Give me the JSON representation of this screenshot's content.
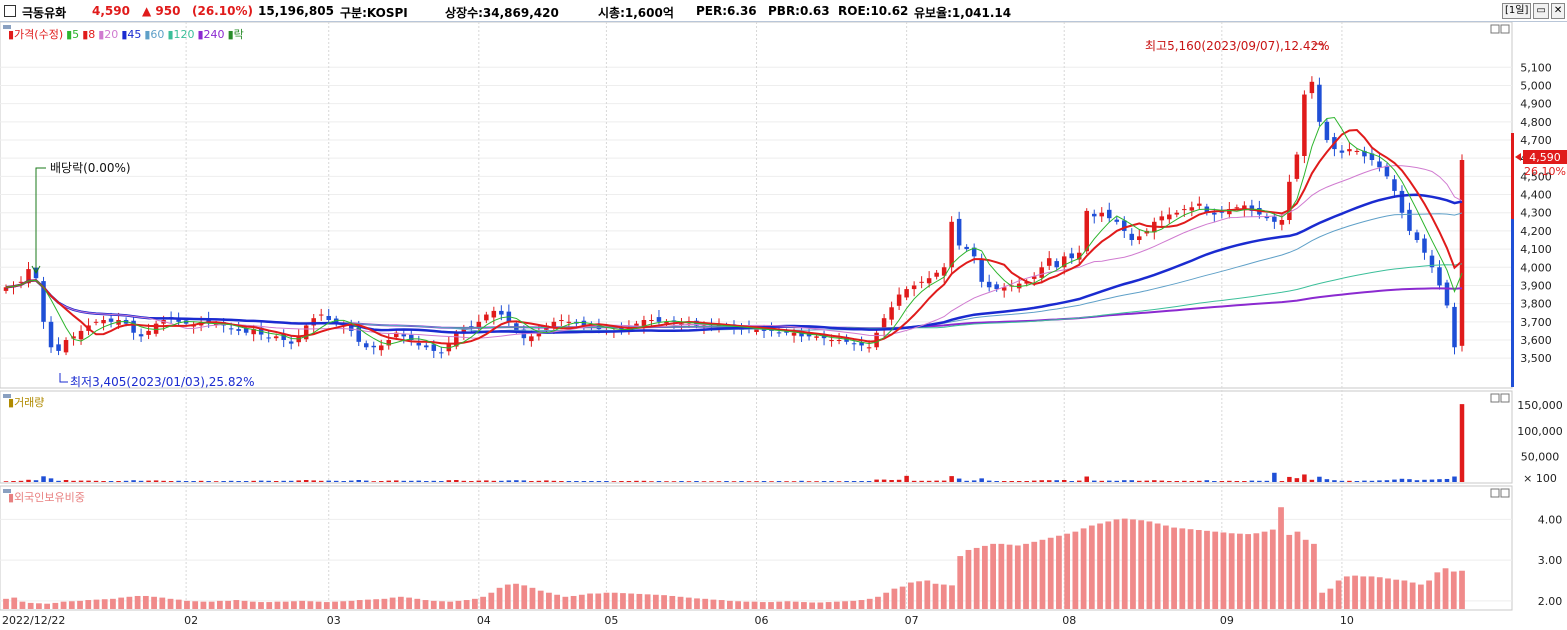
{
  "header": {
    "name": "극동유화",
    "price": "4,590",
    "change": "▲ 950",
    "change_pct": "(26.10%)",
    "volume": "15,196,805",
    "market": "구분:KOSPI",
    "shares": "상장수:34,869,420",
    "mktcap": "시총:1,600억",
    "per": "PER:6.36",
    "pbr": "PBR:0.63",
    "roe": "ROE:10.62",
    "reserve": "유보율:1,041.14",
    "period_btn": "[1일]",
    "colors": {
      "up": "#e01b1b",
      "down": "#1f4fd6"
    }
  },
  "price_legend": {
    "items": [
      {
        "label": "가격(수정)",
        "color": "#e01b1b"
      },
      {
        "label": "5",
        "color": "#2db52d"
      },
      {
        "label": "8",
        "color": "#e01b1b"
      },
      {
        "label": "20",
        "color": "#d07bd0"
      },
      {
        "label": "45",
        "color": "#1a2bd0"
      },
      {
        "label": "60",
        "color": "#5fa0c8"
      },
      {
        "label": "120",
        "color": "#3cbf9a"
      },
      {
        "label": "240",
        "color": "#8b2ad0"
      },
      {
        "label": "락",
        "color": "#2a8c2a"
      }
    ]
  },
  "annotations": {
    "high": "최고5,160(2023/09/07),12.42%",
    "low": "최저3,405(2023/01/03),25.82%",
    "dividend": "배당락(0.00%)",
    "last_price": "4,590",
    "last_pct": "26.10%"
  },
  "volume_legend": "거래량",
  "foreign_legend": "외국인보유비중",
  "chart_data": [
    {
      "type": "candlestick",
      "title": "가격(수정)",
      "ylim": [
        3380,
        5250
      ],
      "y_ticks": [
        "5,100",
        "5,000",
        "4,900",
        "4,800",
        "4,700",
        "4,600",
        "4,500",
        "4,400",
        "4,300",
        "4,200",
        "4,100",
        "4,000",
        "3,900",
        "3,800",
        "3,700",
        "3,600",
        "3,500"
      ],
      "x_ticks": [
        "2022/12/22",
        "02",
        "03",
        "04",
        "05",
        "06",
        "07",
        "08",
        "09",
        "10"
      ],
      "close_series": [
        3890,
        3900,
        3920,
        3990,
        3940,
        3700,
        3560,
        3540,
        3600,
        3620,
        3650,
        3680,
        3700,
        3710,
        3700,
        3710,
        3690,
        3640,
        3620,
        3650,
        3690,
        3710,
        3720,
        3700,
        3690,
        3680,
        3700,
        3690,
        3690,
        3680,
        3660,
        3650,
        3640,
        3660,
        3630,
        3610,
        3620,
        3600,
        3580,
        3620,
        3680,
        3720,
        3740,
        3710,
        3690,
        3680,
        3650,
        3590,
        3560,
        3560,
        3570,
        3600,
        3640,
        3620,
        3600,
        3570,
        3560,
        3540,
        3530,
        3580,
        3640,
        3660,
        3670,
        3700,
        3740,
        3760,
        3740,
        3700,
        3650,
        3610,
        3620,
        3640,
        3680,
        3700,
        3710,
        3700,
        3690,
        3680,
        3670,
        3660,
        3650,
        3650,
        3660,
        3670,
        3690,
        3710,
        3710,
        3700,
        3700,
        3700,
        3690,
        3690,
        3680,
        3680,
        3680,
        3680,
        3670,
        3670,
        3660,
        3660,
        3660,
        3650,
        3650,
        3640,
        3640,
        3640,
        3620,
        3620,
        3620,
        3610,
        3600,
        3600,
        3590,
        3580,
        3570,
        3560,
        3640,
        3720,
        3780,
        3850,
        3880,
        3900,
        3920,
        3940,
        3970,
        4000,
        4250,
        4120,
        4100,
        4060,
        3920,
        3890,
        3880,
        3890,
        3900,
        3910,
        3920,
        3950,
        4000,
        4050,
        4000,
        4060,
        4050,
        4080,
        4310,
        4280,
        4300,
        4270,
        4250,
        4200,
        4150,
        4170,
        4200,
        4250,
        4280,
        4290,
        4300,
        4320,
        4330,
        4350,
        4300,
        4290,
        4300,
        4320,
        4330,
        4340,
        4310,
        4290,
        4270,
        4250,
        4260,
        4470,
        4620,
        4950,
        5020,
        4800,
        4700,
        4650,
        4630,
        4650,
        4640,
        4610,
        4590,
        4550,
        4500,
        4420,
        4300,
        4200,
        4150,
        4080,
        4000,
        3900,
        3790,
        3560,
        4590
      ],
      "high": 5160,
      "low": 3405,
      "last": 4590
    },
    {
      "type": "bar",
      "title": "거래량",
      "ylim": [
        0,
        160000
      ],
      "y_ticks": [
        "150,000",
        "100,000",
        "50,000",
        "× 100"
      ],
      "notable": [
        {
          "x": "2023/07",
          "value": 12000
        },
        {
          "x": "2023/09/07",
          "value": 18000
        },
        {
          "x": "2023/10",
          "value": 151968
        }
      ]
    },
    {
      "type": "bar",
      "title": "외국인보유비중",
      "ylim": [
        1.8,
        4.6
      ],
      "y_ticks": [
        "4.00",
        "3.00",
        "2.00"
      ],
      "values": [
        2.05,
        2.08,
        1.98,
        1.95,
        1.94,
        1.93,
        1.95,
        1.98,
        1.99,
        2.0,
        2.02,
        2.03,
        2.04,
        2.05,
        2.08,
        2.1,
        2.12,
        2.12,
        2.1,
        2.08,
        2.05,
        2.03,
        2.0,
        1.99,
        1.98,
        1.98,
        2.0,
        2.0,
        2.02,
        2.0,
        1.98,
        1.97,
        1.97,
        1.98,
        1.98,
        1.99,
        2.0,
        1.99,
        1.98,
        1.97,
        1.98,
        1.99,
        2.0,
        2.02,
        2.03,
        2.04,
        2.05,
        2.08,
        2.1,
        2.08,
        2.05,
        2.02,
        2.0,
        1.99,
        1.98,
        2.0,
        2.02,
        2.05,
        2.1,
        2.2,
        2.32,
        2.4,
        2.42,
        2.38,
        2.32,
        2.25,
        2.2,
        2.15,
        2.1,
        2.12,
        2.15,
        2.18,
        2.18,
        2.2,
        2.2,
        2.19,
        2.18,
        2.17,
        2.16,
        2.15,
        2.14,
        2.12,
        2.1,
        2.08,
        2.06,
        2.05,
        2.03,
        2.02,
        2.0,
        1.99,
        1.98,
        1.98,
        1.97,
        1.97,
        1.98,
        1.99,
        1.98,
        1.97,
        1.96,
        1.96,
        1.97,
        1.98,
        1.99,
        2.0,
        2.02,
        2.05,
        2.1,
        2.2,
        2.3,
        2.35,
        2.45,
        2.48,
        2.5,
        2.42,
        2.4,
        2.38,
        3.1,
        3.25,
        3.3,
        3.35,
        3.4,
        3.4,
        3.38,
        3.36,
        3.4,
        3.45,
        3.5,
        3.55,
        3.6,
        3.65,
        3.7,
        3.78,
        3.85,
        3.9,
        3.95,
        4.0,
        4.02,
        4.0,
        3.98,
        3.95,
        3.9,
        3.85,
        3.8,
        3.78,
        3.76,
        3.74,
        3.72,
        3.7,
        3.68,
        3.66,
        3.65,
        3.64,
        3.66,
        3.7,
        3.75,
        4.3,
        3.62,
        3.7,
        3.5,
        3.4,
        2.2,
        2.3,
        2.5,
        2.6,
        2.62,
        2.6,
        2.6,
        2.58,
        2.55,
        2.52,
        2.5,
        2.45,
        2.4,
        2.5,
        2.7,
        2.8,
        2.72,
        2.74
      ]
    }
  ]
}
